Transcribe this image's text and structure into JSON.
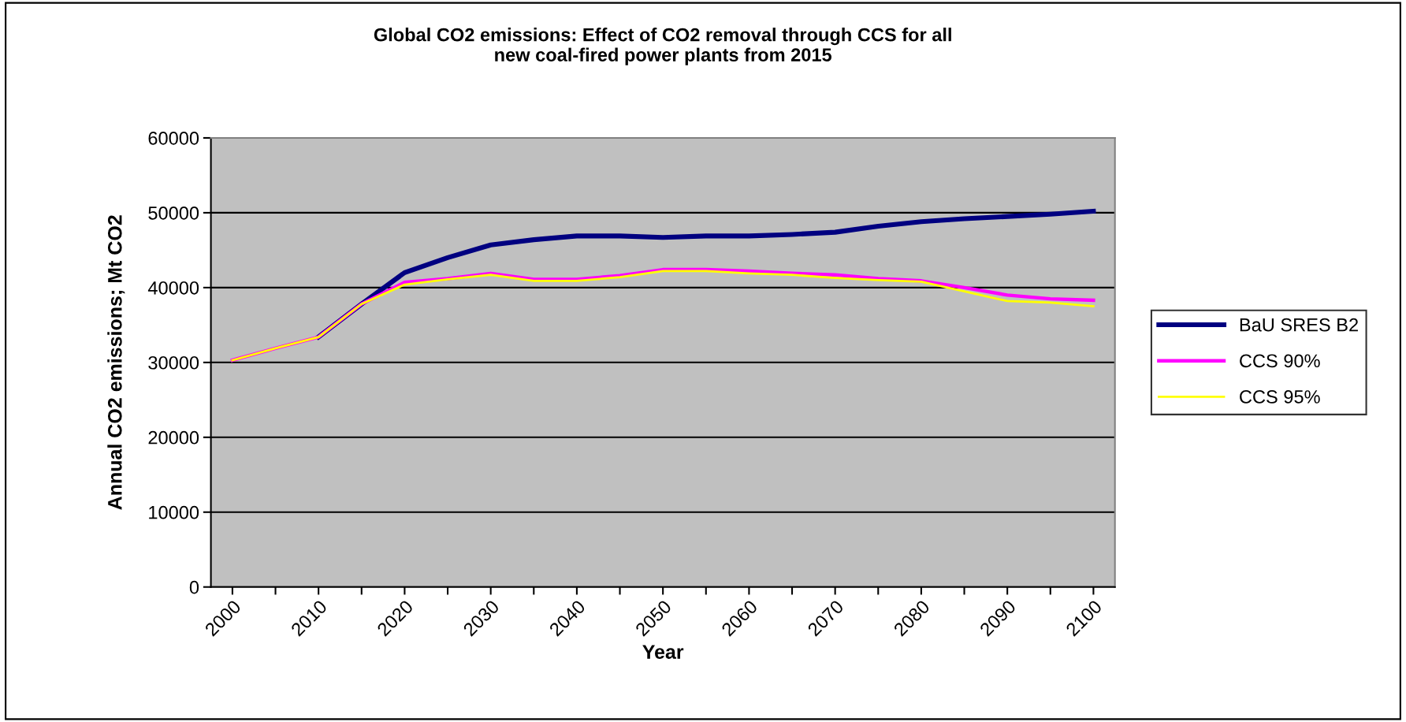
{
  "chart_data": {
    "type": "line",
    "title": "Global CO2 emissions: Effect of CO2 removal through CCS for all\nnew coal-fired power plants from 2015",
    "xlabel": "Year",
    "ylabel": "Annual CO2 emissions; Mt CO2",
    "categories": [
      "2000",
      null,
      "2010",
      null,
      "2020",
      null,
      "2030",
      null,
      "2040",
      null,
      "2050",
      null,
      "2060",
      null,
      "2070",
      null,
      "2080",
      null,
      "2090",
      null,
      "2100"
    ],
    "series": [
      {
        "name": "BaU SRES B2",
        "color": "#000080",
        "values": [
          null,
          null,
          33400,
          37800,
          42000,
          44000,
          45700,
          46400,
          46900,
          46900,
          46700,
          46900,
          46900,
          47100,
          47400,
          48200,
          48800,
          49200,
          49500,
          49800,
          50200
        ]
      },
      {
        "name": "CCS 90%",
        "color": "#ff00ff",
        "values": [
          30300,
          31900,
          33400,
          37800,
          40700,
          41200,
          41900,
          41100,
          41100,
          41600,
          42400,
          42400,
          42200,
          41900,
          41700,
          41200,
          40900,
          40000,
          39000,
          38500,
          38300
        ]
      },
      {
        "name": "CCS 95%",
        "color": "#ffff00",
        "values": [
          30300,
          31900,
          33400,
          37800,
          40400,
          41100,
          41700,
          40900,
          40900,
          41400,
          42200,
          42200,
          41900,
          41700,
          41300,
          41000,
          40800,
          39500,
          38200,
          38000,
          37500
        ]
      }
    ],
    "ylim": [
      0,
      60000
    ],
    "yticks": [
      0,
      10000,
      20000,
      30000,
      40000,
      50000,
      60000
    ],
    "grid": "y",
    "legend": "right"
  }
}
